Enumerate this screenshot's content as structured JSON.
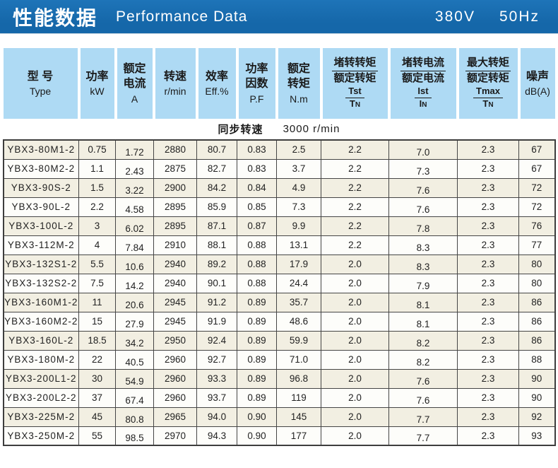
{
  "banner": {
    "title_zh": "性能数据",
    "title_en": "Performance Data",
    "voltage": "380V",
    "frequency": "50Hz"
  },
  "header": {
    "columns": [
      {
        "zh": "型  号",
        "sub": "Type"
      },
      {
        "zh": "功率",
        "sub": "kW"
      },
      {
        "zh": "额定\n电流",
        "sub": "A"
      },
      {
        "zh": "转速",
        "sub": "r/min"
      },
      {
        "zh": "效率",
        "sub": "Eff.%"
      },
      {
        "zh": "功率\n因数",
        "sub": "P.F"
      },
      {
        "zh": "额定\n转矩",
        "sub": "N.m"
      },
      {
        "zh_num": "堵转转矩",
        "zh_den": "额定转矩",
        "la_num": "Tst",
        "la_den": "T",
        "la_den_sub": "N"
      },
      {
        "zh_num": "堵转电流",
        "zh_den": "额定电流",
        "la_num": "Ist",
        "la_den": "I",
        "la_den_sub": "N"
      },
      {
        "zh_num": "最大转矩",
        "zh_den": "额定转矩",
        "la_num": "Tmax",
        "la_den": "T",
        "la_den_sub": "N"
      },
      {
        "zh": "噪声",
        "sub": "dB(A)"
      }
    ]
  },
  "sync_row": {
    "label_zh": "同步转速",
    "value": "3000 r/min"
  },
  "table": {
    "rows": [
      [
        "YBX3-80M1-2",
        "0.75",
        "1.72",
        "2880",
        "80.7",
        "0.83",
        "2.5",
        "2.2",
        "7.0",
        "2.3",
        "67"
      ],
      [
        "YBX3-80M2-2",
        "1.1",
        "2.43",
        "2875",
        "82.7",
        "0.83",
        "3.7",
        "2.2",
        "7.3",
        "2.3",
        "67"
      ],
      [
        "YBX3-90S-2",
        "1.5",
        "3.22",
        "2900",
        "84.2",
        "0.84",
        "4.9",
        "2.2",
        "7.6",
        "2.3",
        "72"
      ],
      [
        "YBX3-90L-2",
        "2.2",
        "4.58",
        "2895",
        "85.9",
        "0.85",
        "7.3",
        "2.2",
        "7.6",
        "2.3",
        "72"
      ],
      [
        "YBX3-100L-2",
        "3",
        "6.02",
        "2895",
        "87.1",
        "0.87",
        "9.9",
        "2.2",
        "7.8",
        "2.3",
        "76"
      ],
      [
        "YBX3-112M-2",
        "4",
        "7.84",
        "2910",
        "88.1",
        "0.88",
        "13.1",
        "2.2",
        "8.3",
        "2.3",
        "77"
      ],
      [
        "YBX3-132S1-2",
        "5.5",
        "10.6",
        "2940",
        "89.2",
        "0.88",
        "17.9",
        "2.0",
        "8.3",
        "2.3",
        "80"
      ],
      [
        "YBX3-132S2-2",
        "7.5",
        "14.2",
        "2940",
        "90.1",
        "0.88",
        "24.4",
        "2.0",
        "7.9",
        "2.3",
        "80"
      ],
      [
        "YBX3-160M1-2",
        "11",
        "20.6",
        "2945",
        "91.2",
        "0.89",
        "35.7",
        "2.0",
        "8.1",
        "2.3",
        "86"
      ],
      [
        "YBX3-160M2-2",
        "15",
        "27.9",
        "2945",
        "91.9",
        "0.89",
        "48.6",
        "2.0",
        "8.1",
        "2.3",
        "86"
      ],
      [
        "YBX3-160L-2",
        "18.5",
        "34.2",
        "2950",
        "92.4",
        "0.89",
        "59.9",
        "2.0",
        "8.2",
        "2.3",
        "86"
      ],
      [
        "YBX3-180M-2",
        "22",
        "40.5",
        "2960",
        "92.7",
        "0.89",
        "71.0",
        "2.0",
        "8.2",
        "2.3",
        "88"
      ],
      [
        "YBX3-200L1-2",
        "30",
        "54.9",
        "2960",
        "93.3",
        "0.89",
        "96.8",
        "2.0",
        "7.6",
        "2.3",
        "90"
      ],
      [
        "YBX3-200L2-2",
        "37",
        "67.4",
        "2960",
        "93.7",
        "0.89",
        "119",
        "2.0",
        "7.6",
        "2.3",
        "90"
      ],
      [
        "YBX3-225M-2",
        "45",
        "80.8",
        "2965",
        "94.0",
        "0.90",
        "145",
        "2.0",
        "7.7",
        "2.3",
        "92"
      ],
      [
        "YBX3-250M-2",
        "55",
        "98.5",
        "2970",
        "94.3",
        "0.90",
        "177",
        "2.0",
        "7.7",
        "2.3",
        "93"
      ]
    ]
  },
  "colors": {
    "banner_blue": "#1567a9",
    "header_blue": "#aedaf4",
    "row_cream": "#f2efe2",
    "grid_line": "#454545"
  }
}
